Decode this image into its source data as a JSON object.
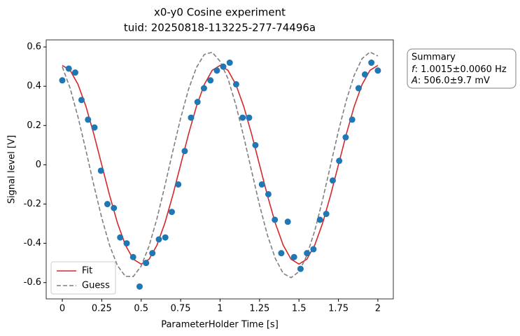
{
  "chart_data": {
    "type": "scatter",
    "title": "x0-y0 Cosine experiment",
    "subtitle": "tuid: 20250818-113225-277-74496a",
    "x_label": "ParameterHolder Time [s]",
    "y_label": "Signal level [V]",
    "xlim": [
      -0.102,
      2.098
    ],
    "ylim": [
      -0.683,
      0.636
    ],
    "xticks": [
      0,
      0.25,
      0.5,
      0.75,
      1,
      1.25,
      1.5,
      1.75,
      2
    ],
    "yticks": [
      -0.6,
      -0.4,
      -0.2,
      0,
      0.2,
      0.4,
      0.6
    ],
    "points": {
      "color": "#1f77b4",
      "x": [
        0,
        0.041,
        0.082,
        0.122,
        0.163,
        0.204,
        0.245,
        0.286,
        0.327,
        0.367,
        0.408,
        0.449,
        0.49,
        0.531,
        0.571,
        0.612,
        0.653,
        0.694,
        0.735,
        0.776,
        0.816,
        0.857,
        0.898,
        0.939,
        0.98,
        1.02,
        1.061,
        1.102,
        1.143,
        1.184,
        1.224,
        1.265,
        1.306,
        1.347,
        1.388,
        1.429,
        1.469,
        1.51,
        1.551,
        1.592,
        1.633,
        1.673,
        1.714,
        1.755,
        1.796,
        1.837,
        1.878,
        1.918,
        1.959,
        2.0
      ],
      "values": [
        0.43,
        0.49,
        0.47,
        0.33,
        0.23,
        0.19,
        -0.03,
        -0.2,
        -0.22,
        -0.37,
        -0.4,
        -0.47,
        -0.62,
        -0.5,
        -0.45,
        -0.38,
        -0.37,
        -0.24,
        -0.1,
        0.07,
        0.24,
        0.32,
        0.39,
        0.43,
        0.48,
        0.5,
        0.52,
        0.41,
        0.24,
        0.24,
        0.1,
        -0.1,
        -0.15,
        -0.28,
        -0.45,
        -0.29,
        -0.47,
        -0.53,
        -0.45,
        -0.43,
        -0.28,
        -0.25,
        -0.08,
        0.02,
        0.14,
        0.23,
        0.39,
        0.46,
        0.52,
        0.48
      ]
    },
    "series": [
      {
        "name": "Fit",
        "color": "#d62728",
        "dashed": false,
        "x": [
          0,
          0.05,
          0.1,
          0.15,
          0.2,
          0.25,
          0.3,
          0.35,
          0.4,
          0.45,
          0.5,
          0.55,
          0.6,
          0.65,
          0.7,
          0.75,
          0.8,
          0.85,
          0.9,
          0.95,
          1,
          1.05,
          1.1,
          1.15,
          1.2,
          1.25,
          1.3,
          1.35,
          1.4,
          1.45,
          1.5,
          1.55,
          1.6,
          1.65,
          1.7,
          1.75,
          1.8,
          1.85,
          1.9,
          1.95,
          2
        ],
        "values": [
          0.506,
          0.481,
          0.409,
          0.297,
          0.156,
          0,
          -0.156,
          -0.297,
          -0.409,
          -0.481,
          -0.506,
          -0.481,
          -0.409,
          -0.297,
          -0.156,
          0,
          0.156,
          0.297,
          0.409,
          0.481,
          0.506,
          0.481,
          0.409,
          0.297,
          0.156,
          0,
          -0.156,
          -0.297,
          -0.409,
          -0.481,
          -0.506,
          -0.481,
          -0.409,
          -0.297,
          -0.156,
          0,
          0.156,
          0.297,
          0.409,
          0.481,
          0.506
        ]
      },
      {
        "name": "Guess",
        "color": "#7f7f7f",
        "dashed": true,
        "x": [
          0,
          0.05,
          0.1,
          0.15,
          0.2,
          0.25,
          0.3,
          0.35,
          0.4,
          0.45,
          0.5,
          0.55,
          0.6,
          0.65,
          0.7,
          0.75,
          0.8,
          0.85,
          0.9,
          0.95,
          1,
          1.05,
          1.1,
          1.15,
          1.2,
          1.25,
          1.3,
          1.35,
          1.4,
          1.45,
          1.5,
          1.55,
          1.6,
          1.65,
          1.7,
          1.75,
          1.8,
          1.85,
          1.9,
          1.95,
          2
        ],
        "values": [
          0.499,
          0.389,
          0.242,
          0.073,
          -0.104,
          -0.27,
          -0.411,
          -0.514,
          -0.568,
          -0.569,
          -0.516,
          -0.414,
          -0.274,
          -0.108,
          0.068,
          0.237,
          0.384,
          0.495,
          0.562,
          0.573,
          0.527,
          0.439,
          0.305,
          0.143,
          -0.032,
          -0.205,
          -0.358,
          -0.477,
          -0.553,
          -0.575,
          -0.544,
          -0.462,
          -0.336,
          -0.178,
          -0.003,
          0.171,
          0.328,
          0.456,
          0.541,
          0.574,
          0.554
        ]
      }
    ],
    "legend": "lower left",
    "summary": {
      "heading": "Summary",
      "lines": [
        {
          "symbol": "f",
          "text": ": 1.0015±0.0060 Hz"
        },
        {
          "symbol": "A",
          "text": ": 506.0±9.7 mV"
        }
      ]
    }
  }
}
